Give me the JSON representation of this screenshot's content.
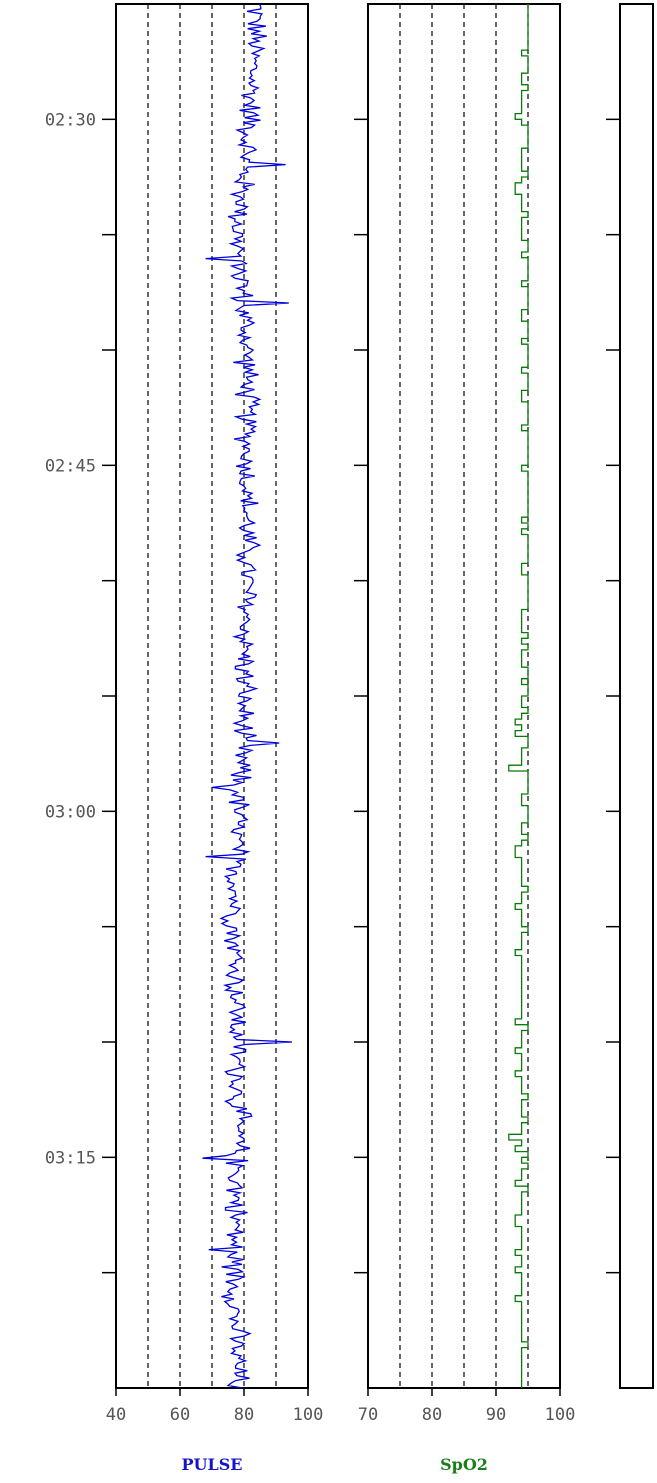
{
  "chart_data": [
    {
      "type": "line",
      "label": "PULSE",
      "label_color": "#1515c8",
      "line_color": "#0000dd",
      "xlim": [
        40,
        100
      ],
      "x_ticks": [
        40,
        60,
        80,
        100
      ],
      "x_tick_labels": [
        "40",
        "60",
        "80",
        "100"
      ],
      "x_gridlines": [
        50,
        60,
        70,
        80,
        90
      ],
      "y_axis": "time",
      "y_range": [
        "02:25",
        "03:25"
      ],
      "y_tick_labels": [
        {
          "t": "02:30",
          "label": "02:30"
        },
        {
          "t": "02:45",
          "label": "02:45"
        },
        {
          "t": "03:00",
          "label": "03:00"
        },
        {
          "t": "03:15",
          "label": "03:15"
        }
      ],
      "y_minor_ticks": [
        "02:30",
        "02:35",
        "02:40",
        "02:45",
        "02:50",
        "02:55",
        "03:00",
        "03:05",
        "03:10",
        "03:15",
        "03:20"
      ],
      "series": [
        {
          "anchors": [
            {
              "t": "02:25",
              "v": 84
            },
            {
              "t": "02:30",
              "v": 82
            },
            {
              "t": "02:35",
              "v": 78
            },
            {
              "t": "02:40",
              "v": 81
            },
            {
              "t": "02:45",
              "v": 81
            },
            {
              "t": "02:50",
              "v": 81
            },
            {
              "t": "02:55",
              "v": 80
            },
            {
              "t": "03:00",
              "v": 78
            },
            {
              "t": "03:05",
              "v": 77
            },
            {
              "t": "03:10",
              "v": 78
            },
            {
              "t": "03:15",
              "v": 78
            },
            {
              "t": "03:20",
              "v": 77
            },
            {
              "t": "03:25",
              "v": 78
            }
          ],
          "amplitude": 4,
          "spikes": [
            {
              "t": "02:32",
              "v": 93
            },
            {
              "t": "02:36",
              "v": 68
            },
            {
              "t": "02:38",
              "v": 94
            },
            {
              "t": "02:57",
              "v": 91
            },
            {
              "t": "02:59",
              "v": 70
            },
            {
              "t": "03:02",
              "v": 68
            },
            {
              "t": "03:10",
              "v": 95
            },
            {
              "t": "03:15",
              "v": 67
            },
            {
              "t": "03:19",
              "v": 69
            }
          ]
        }
      ]
    },
    {
      "type": "line",
      "label": "SpO2",
      "label_color": "#1a7f1a",
      "line_color": "#0a7a0a",
      "xlim": [
        70,
        100
      ],
      "x_ticks": [
        70,
        80,
        90,
        100
      ],
      "x_tick_labels": [
        "70",
        "80",
        "90",
        "100"
      ],
      "x_gridlines": [
        75,
        80,
        85,
        90,
        95
      ],
      "y_axis": "time",
      "y_range": [
        "02:25",
        "03:25"
      ],
      "y_minor_ticks": [
        "02:30",
        "02:35",
        "02:40",
        "02:45",
        "02:50",
        "02:55",
        "03:00",
        "03:05",
        "03:10",
        "03:15",
        "03:20"
      ],
      "series": [
        {
          "segments": [
            {
              "from": "02:25",
              "to": "02:28",
              "v": 95
            },
            {
              "from": "02:28",
              "to": "02:30",
              "v": 94
            },
            {
              "from": "02:30",
              "to": "02:32",
              "v": 95
            },
            {
              "from": "02:32",
              "to": "02:35",
              "v": 94
            },
            {
              "from": "02:35",
              "to": "02:40",
              "v": 95
            },
            {
              "from": "02:40",
              "to": "02:55",
              "v": 95
            },
            {
              "from": "02:55",
              "to": "02:58",
              "v": 94
            },
            {
              "from": "02:58",
              "to": "03:00",
              "v": 95
            },
            {
              "from": "03:00",
              "to": "03:10",
              "v": 94
            },
            {
              "from": "03:10",
              "to": "03:14",
              "v": 94
            },
            {
              "from": "03:14",
              "to": "03:25",
              "v": 94
            }
          ],
          "dips": [
            {
              "t": "02:58",
              "v": 92
            },
            {
              "t": "03:14",
              "v": 92
            },
            {
              "t": "03:04",
              "v": 93
            },
            {
              "t": "03:21",
              "v": 93
            },
            {
              "t": "02:42",
              "v": 94
            },
            {
              "t": "02:29",
              "v": 94
            }
          ]
        }
      ]
    },
    {
      "type": "line",
      "label": "",
      "xlim": null,
      "y_axis": "time",
      "y_range": [
        "02:25",
        "03:25"
      ],
      "y_minor_ticks": [
        "02:30",
        "02:35",
        "02:40",
        "02:45",
        "02:50",
        "02:55",
        "03:00",
        "03:05",
        "03:10",
        "03:15",
        "03:20"
      ],
      "series": []
    }
  ]
}
